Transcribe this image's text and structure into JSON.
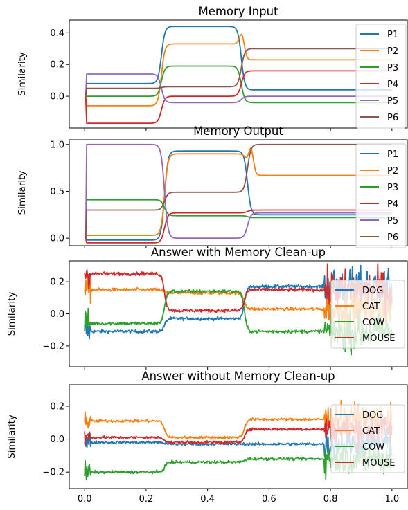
{
  "chart_data": [
    {
      "type": "line",
      "title": "Memory Input",
      "ylabel": "Similarity",
      "xlim": [
        -0.05,
        1.05
      ],
      "ylim": [
        -0.2,
        0.48
      ],
      "yticks": [
        0.0,
        0.2,
        0.4
      ],
      "ytick_labels": [
        "0.0",
        "0.2",
        "0.4"
      ],
      "xticks": [
        0.0,
        0.2,
        0.4,
        0.6,
        0.8,
        1.0
      ],
      "grid": false,
      "legend": "right",
      "noise": 0,
      "breakpoints": [
        0.0,
        0.25,
        0.51,
        1.0
      ],
      "series": [
        {
          "name": "P1",
          "color": "#1f77b4",
          "levels": [
            0.08,
            0.44,
            0.04
          ]
        },
        {
          "name": "P2",
          "color": "#ff7f0e",
          "levels": [
            -0.06,
            0.33,
            0.23
          ],
          "spike": {
            "x": 0.51,
            "y": 0.39
          }
        },
        {
          "name": "P3",
          "color": "#2ca02c",
          "levels": [
            0.0,
            0.19,
            -0.04
          ]
        },
        {
          "name": "P4",
          "color": "#d62728",
          "levels": [
            -0.17,
            0.0,
            0.16
          ]
        },
        {
          "name": "P5",
          "color": "#9467bd",
          "levels": [
            0.14,
            -0.04,
            0.0
          ]
        },
        {
          "name": "P6",
          "color": "#8c564b",
          "levels": [
            0.05,
            0.06,
            0.3
          ]
        }
      ]
    },
    {
      "type": "line",
      "title": "Memory Output",
      "ylabel": "Similarity",
      "xlim": [
        -0.05,
        1.05
      ],
      "ylim": [
        -0.08,
        1.05
      ],
      "yticks": [
        0.0,
        0.5,
        1.0
      ],
      "ytick_labels": [
        "0.0",
        "0.5",
        "1.0"
      ],
      "xticks": [
        0.0,
        0.2,
        0.4,
        0.6,
        0.8,
        1.0
      ],
      "grid": false,
      "legend": "right",
      "noise": 0,
      "breakpoints": [
        0.0,
        0.26,
        0.53,
        1.0
      ],
      "series": [
        {
          "name": "P1",
          "color": "#1f77b4",
          "levels": [
            -0.02,
            0.93,
            0.25
          ]
        },
        {
          "name": "P2",
          "color": "#ff7f0e",
          "levels": [
            0.03,
            0.9,
            0.67
          ],
          "spike": {
            "x": 0.54,
            "y": 0.96
          }
        },
        {
          "name": "P3",
          "color": "#2ca02c",
          "levels": [
            0.41,
            0.24,
            0.22
          ]
        },
        {
          "name": "P4",
          "color": "#d62728",
          "levels": [
            -0.05,
            0.27,
            0.3
          ]
        },
        {
          "name": "P5",
          "color": "#9467bd",
          "levels": [
            1.0,
            0.0,
            0.27
          ]
        },
        {
          "name": "P6",
          "color": "#8c564b",
          "levels": [
            0.3,
            0.49,
            1.0
          ]
        }
      ]
    },
    {
      "type": "line",
      "title": "Answer with Memory Clean-up",
      "ylabel": "Similarity",
      "xlim": [
        -0.05,
        1.05
      ],
      "ylim": [
        -0.33,
        0.33
      ],
      "yticks": [
        -0.2,
        0.0,
        0.2
      ],
      "ytick_labels": [
        "−0.2",
        "0.0",
        "0.2"
      ],
      "xticks": [
        0.0,
        0.2,
        0.4,
        0.6,
        0.8,
        1.0
      ],
      "grid": false,
      "legend": "right",
      "noise": 0.01,
      "breakpoints": [
        0.0,
        0.26,
        0.52,
        0.78
      ],
      "series": [
        {
          "name": "DOG",
          "color": "#1f77b4",
          "levels": [
            -0.11,
            -0.03,
            0.17
          ]
        },
        {
          "name": "CAT",
          "color": "#ff7f0e",
          "levels": [
            0.15,
            0.13,
            0.03
          ]
        },
        {
          "name": "COW",
          "color": "#2ca02c",
          "levels": [
            -0.06,
            0.14,
            -0.11
          ]
        },
        {
          "name": "MOUSE",
          "color": "#d62728",
          "levels": [
            0.25,
            0.02,
            0.15
          ]
        }
      ]
    },
    {
      "type": "line",
      "title": "Answer without Memory Clean-up",
      "ylabel": "Similarity",
      "xlim": [
        -0.05,
        1.05
      ],
      "ylim": [
        -0.3,
        0.33
      ],
      "yticks": [
        -0.2,
        0.0,
        0.2
      ],
      "ytick_labels": [
        "−0.2",
        "0.0",
        "0.2"
      ],
      "xticks": [
        0.0,
        0.2,
        0.4,
        0.6,
        0.8,
        1.0
      ],
      "xtick_labels": [
        "0.0",
        "0.2",
        "0.4",
        "0.6",
        "0.8",
        "1.0"
      ],
      "grid": false,
      "legend": "right",
      "noise": 0.008,
      "breakpoints": [
        0.0,
        0.26,
        0.52,
        0.78
      ],
      "series": [
        {
          "name": "DOG",
          "color": "#1f77b4",
          "levels": [
            -0.02,
            -0.03,
            -0.03
          ]
        },
        {
          "name": "CAT",
          "color": "#ff7f0e",
          "levels": [
            0.11,
            0.01,
            0.12
          ]
        },
        {
          "name": "COW",
          "color": "#2ca02c",
          "levels": [
            -0.2,
            -0.14,
            -0.12
          ]
        },
        {
          "name": "MOUSE",
          "color": "#d62728",
          "levels": [
            0.01,
            -0.02,
            0.06
          ]
        }
      ]
    }
  ]
}
